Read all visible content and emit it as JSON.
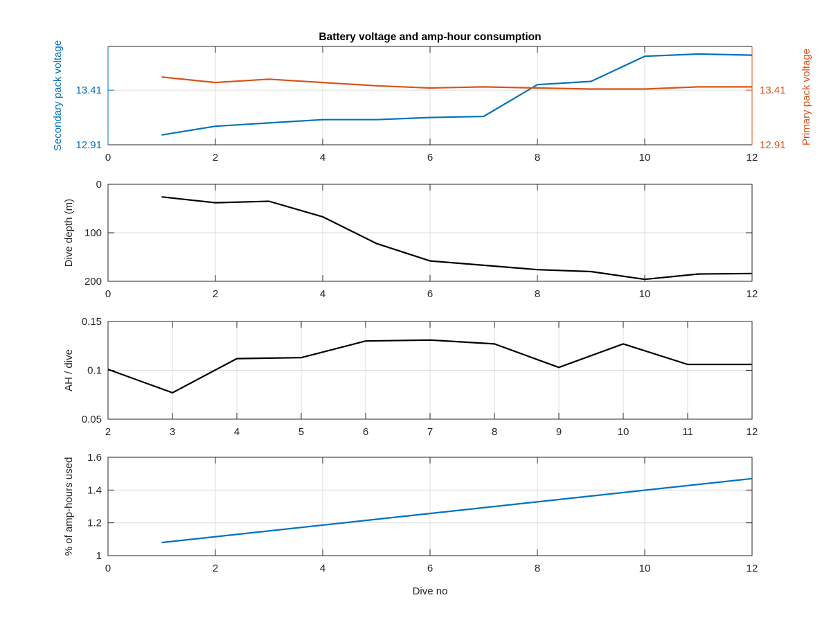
{
  "figure": {
    "title": "Battery voltage and amp-hour consumption",
    "xlabel": "Dive no",
    "colors": {
      "blue": "#0072BD",
      "orange": "#D95319",
      "black": "#000000",
      "axis": "#262626",
      "grid": "#DCDCDC"
    }
  },
  "chart_data": [
    {
      "type": "line",
      "title": "Battery voltage and amp-hour consumption",
      "xlabel": "",
      "xlim": [
        0,
        12
      ],
      "xticks": [
        0,
        2,
        4,
        6,
        8,
        10,
        12
      ],
      "grid": true,
      "ylabel": "Secondary pack voltage",
      "ylim": [
        12.91,
        13.81
      ],
      "yticks": [
        12.91,
        13.41
      ],
      "ylabel_right": "Primary pack voltage",
      "ylim_right": [
        12.91,
        13.81
      ],
      "yticks_right": [
        12.91,
        13.41
      ],
      "series": [
        {
          "axis": "left",
          "color": "#0072BD",
          "x": [
            1,
            2,
            3,
            4,
            5,
            6,
            7,
            8,
            9,
            10,
            11,
            12
          ],
          "y": [
            13.0,
            13.08,
            13.11,
            13.14,
            13.14,
            13.16,
            13.17,
            13.46,
            13.49,
            13.72,
            13.74,
            13.73
          ]
        },
        {
          "axis": "right",
          "color": "#D95319",
          "x": [
            1,
            2,
            3,
            4,
            5,
            6,
            7,
            8,
            9,
            10,
            11,
            12
          ],
          "y": [
            13.53,
            13.48,
            13.51,
            13.48,
            13.45,
            13.43,
            13.44,
            13.43,
            13.42,
            13.42,
            13.44,
            13.44
          ]
        }
      ]
    },
    {
      "type": "line",
      "xlabel": "",
      "xlim": [
        0,
        12
      ],
      "xticks": [
        0,
        2,
        4,
        6,
        8,
        10,
        12
      ],
      "grid": true,
      "ylabel": "Dive depth (m)",
      "ylim": [
        0,
        200
      ],
      "yticks": [
        0,
        100,
        200
      ],
      "y_reversed": true,
      "series": [
        {
          "color": "#000000",
          "x": [
            1,
            2,
            3,
            4,
            5,
            6,
            7,
            8,
            9,
            10,
            11,
            12
          ],
          "y": [
            26,
            38,
            35,
            67,
            122,
            158,
            167,
            176,
            180,
            196,
            185,
            184
          ]
        }
      ]
    },
    {
      "type": "line",
      "xlabel": "",
      "xlim": [
        2,
        12
      ],
      "xticks": [
        2,
        3,
        4,
        5,
        6,
        7,
        8,
        9,
        10,
        11,
        12
      ],
      "grid": true,
      "ylabel": "AH / dive",
      "ylim": [
        0.05,
        0.15
      ],
      "yticks": [
        0.05,
        0.1,
        0.15
      ],
      "series": [
        {
          "color": "#000000",
          "x": [
            2,
            3,
            4,
            5,
            6,
            7,
            8,
            9,
            10,
            11,
            12
          ],
          "y": [
            0.101,
            0.077,
            0.112,
            0.113,
            0.13,
            0.131,
            0.127,
            0.103,
            0.127,
            0.106,
            0.106
          ]
        }
      ]
    },
    {
      "type": "line",
      "xlabel": "Dive no",
      "xlim": [
        0,
        12
      ],
      "xticks": [
        0,
        2,
        4,
        6,
        8,
        10,
        12
      ],
      "grid": true,
      "ylabel": "% of amp-hours used",
      "ylim": [
        1,
        1.6
      ],
      "yticks": [
        1,
        1.2,
        1.4,
        1.6
      ],
      "series": [
        {
          "color": "#0072BD",
          "x": [
            1,
            12
          ],
          "y": [
            1.08,
            1.47
          ]
        }
      ]
    }
  ]
}
